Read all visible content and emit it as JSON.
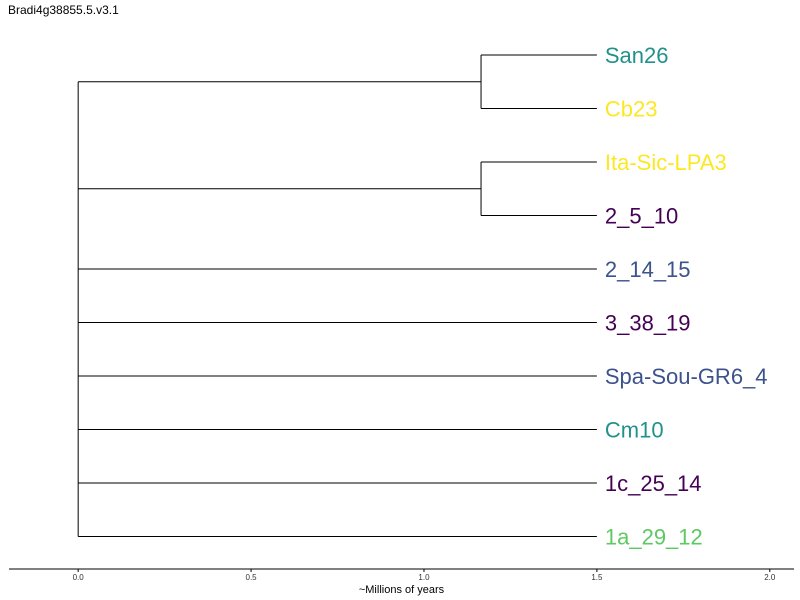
{
  "title": "Bradi4g38855.5.v3.1",
  "colors": {
    "teal": "#21918c",
    "yellow": "#fde725",
    "dark_purple": "#440154",
    "blue": "#3b528b",
    "green": "#5ec962"
  },
  "chart_data": {
    "type": "dendrogram",
    "xlabel": "~Millions of years",
    "xlim": [
      -0.2,
      2.07
    ],
    "xticks": [
      0.0,
      0.5,
      1.0,
      1.5,
      2.0
    ],
    "xtick_labels": [
      "0.0",
      "0.5",
      "1.0",
      "1.5",
      "2.0"
    ],
    "leaf_tip_x": 1.5,
    "root_x": 0.0,
    "leaves": [
      {
        "name": "San26",
        "color": "#21918c"
      },
      {
        "name": "Cb23",
        "color": "#fde725"
      },
      {
        "name": "Ita-Sic-LPA3",
        "color": "#fde725"
      },
      {
        "name": "2_5_10",
        "color": "#440154"
      },
      {
        "name": "2_14_15",
        "color": "#3b528b"
      },
      {
        "name": "3_38_19",
        "color": "#440154"
      },
      {
        "name": "Spa-Sou-GR6_4",
        "color": "#3b528b"
      },
      {
        "name": "Cm10",
        "color": "#21918c"
      },
      {
        "name": "1c_25_14",
        "color": "#440154"
      },
      {
        "name": "1a_29_12",
        "color": "#5ec962"
      }
    ],
    "clades": [
      {
        "members": [
          0,
          1
        ],
        "node_x": 1.165
      },
      {
        "members": [
          2,
          3
        ],
        "node_x": 1.165
      }
    ],
    "root_children": [
      "clade0",
      "clade1",
      4,
      5,
      6,
      7,
      8,
      9
    ]
  }
}
